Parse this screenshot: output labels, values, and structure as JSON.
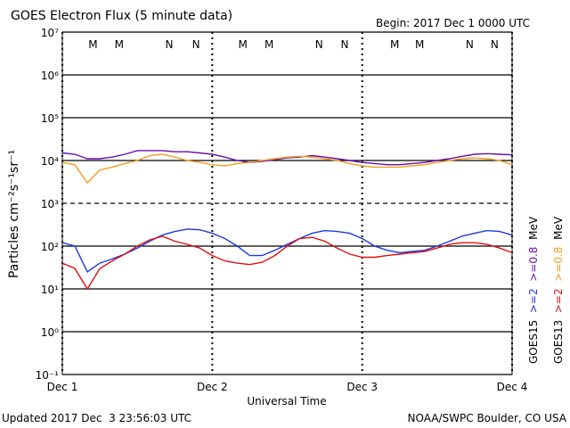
{
  "chart_data": {
    "type": "line",
    "title": "GOES Electron Flux (5 minute data)",
    "begin": "Begin: 2017 Dec 1 0000 UTC",
    "x_label": "Universal Time",
    "y_label": "Particles cm⁻²s⁻¹sr⁻¹",
    "updated": "Updated 2017 Dec  3 23:56:03 UTC",
    "source": "NOAA/SWPC Boulder, CO USA",
    "log_scale": true,
    "grid": true,
    "xlim": [
      0,
      72
    ],
    "xticks": [
      {
        "value": 0,
        "label": "Dec 1"
      },
      {
        "value": 24,
        "label": "Dec 2"
      },
      {
        "value": 48,
        "label": "Dec 3"
      },
      {
        "value": 72,
        "label": "Dec 4"
      }
    ],
    "ylim": [
      0.1,
      10000000
    ],
    "yticks": [
      {
        "value": 0.1,
        "label": "10⁻¹"
      },
      {
        "value": 1,
        "label": "10⁰"
      },
      {
        "value": 10,
        "label": "10¹"
      },
      {
        "value": 100,
        "label": "10²"
      },
      {
        "value": 1000,
        "label": "10³",
        "dashed": true
      },
      {
        "value": 10000,
        "label": "10⁴"
      },
      {
        "value": 100000,
        "label": "10⁵"
      },
      {
        "value": 1000000,
        "label": "10⁶"
      },
      {
        "value": 10000000,
        "label": "10⁷"
      }
    ],
    "x": [
      0,
      2,
      4,
      6,
      8,
      10,
      12,
      14,
      16,
      18,
      20,
      22,
      24,
      26,
      28,
      30,
      32,
      34,
      36,
      38,
      40,
      42,
      44,
      46,
      48,
      50,
      52,
      54,
      56,
      58,
      60,
      62,
      64,
      66,
      68,
      70,
      72
    ],
    "legend_groups": [
      {
        "satellite": "GOES15",
        "unit": "MeV",
        "series": [
          2,
          0
        ]
      },
      {
        "satellite": "GOES13",
        "unit": "MeV",
        "series": [
          3,
          1
        ]
      }
    ],
    "series": [
      {
        "name": ">=0.8",
        "color": "#6a0dad",
        "values": [
          15000,
          14000,
          11000,
          11000,
          12000,
          14000,
          17000,
          17000,
          17000,
          16000,
          16000,
          15000,
          14000,
          12000,
          10000,
          9000,
          9500,
          10500,
          11500,
          12000,
          13000,
          12000,
          11000,
          10000,
          9000,
          8500,
          8000,
          8000,
          8500,
          9000,
          10000,
          11000,
          12500,
          14000,
          14500,
          14000,
          13500
        ]
      },
      {
        "name": ">=0.8",
        "color": "#f0a020",
        "values": [
          9000,
          8000,
          3000,
          6000,
          7000,
          8500,
          10000,
          13000,
          14000,
          12000,
          10000,
          9000,
          8000,
          7500,
          8500,
          9000,
          10000,
          11000,
          12000,
          12500,
          12000,
          11000,
          10000,
          8500,
          7500,
          7000,
          7000,
          7000,
          7500,
          8000,
          9000,
          10000,
          11000,
          11500,
          11000,
          10000,
          8000
        ]
      },
      {
        "name": ">=2",
        "color": "#1a3adf",
        "values": [
          120,
          100,
          25,
          40,
          50,
          65,
          90,
          130,
          180,
          220,
          250,
          240,
          200,
          150,
          100,
          60,
          60,
          80,
          110,
          150,
          200,
          230,
          220,
          200,
          150,
          100,
          80,
          70,
          75,
          80,
          100,
          130,
          170,
          200,
          230,
          220,
          180
        ]
      },
      {
        "name": ">=2",
        "color": "#e01010",
        "values": [
          40,
          30,
          10,
          30,
          45,
          65,
          100,
          140,
          170,
          130,
          110,
          90,
          60,
          45,
          40,
          37,
          42,
          60,
          100,
          150,
          160,
          130,
          90,
          65,
          55,
          55,
          60,
          65,
          70,
          75,
          90,
          110,
          120,
          120,
          110,
          90,
          70
        ]
      }
    ],
    "annotations": [
      {
        "text": "M",
        "x": 4.9,
        "color": "#e01010"
      },
      {
        "text": "M",
        "x": 9.1,
        "color": "#1a3adf"
      },
      {
        "text": "N",
        "x": 17.1,
        "color": "#e01010"
      },
      {
        "text": "N",
        "x": 21.4,
        "color": "#1a3adf"
      },
      {
        "text": "M",
        "x": 28.9,
        "color": "#e01010"
      },
      {
        "text": "M",
        "x": 33.1,
        "color": "#1a3adf"
      },
      {
        "text": "N",
        "x": 41.1,
        "color": "#e01010"
      },
      {
        "text": "N",
        "x": 45.2,
        "color": "#1a3adf"
      },
      {
        "text": "M",
        "x": 53.2,
        "color": "#e01010"
      },
      {
        "text": "M",
        "x": 57.2,
        "color": "#1a3adf"
      },
      {
        "text": "N",
        "x": 65.2,
        "color": "#e01010"
      },
      {
        "text": "N",
        "x": 69.2,
        "color": "#1a3adf"
      }
    ]
  }
}
